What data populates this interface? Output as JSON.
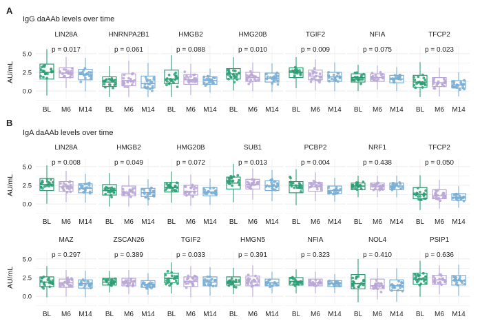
{
  "panels": [
    {
      "letter": "A",
      "title": "IgG daAAb levels over time",
      "ylabel": "AU/mL",
      "rows": [
        [
          {
            "name": "LIN28A",
            "p": "p = 0.017",
            "stats": [
              [
                1.6,
                2.5,
                3.6
              ],
              [
                1.8,
                2.4,
                3.1
              ],
              [
                1.5,
                2.2,
                2.9
              ]
            ]
          },
          {
            "name": "HNRNPA2B1",
            "p": "p = 0.061",
            "stats": [
              [
                0.6,
                1.2,
                1.9
              ],
              [
                0.7,
                1.4,
                2.3
              ],
              [
                0.4,
                1.0,
                2.0
              ]
            ]
          },
          {
            "name": "HMGB2",
            "p": "p = 0.088",
            "stats": [
              [
                1.0,
                1.6,
                2.8
              ],
              [
                0.9,
                1.5,
                2.2
              ],
              [
                0.9,
                1.4,
                1.9
              ]
            ]
          },
          {
            "name": "HMG20B",
            "p": "p = 0.010",
            "stats": [
              [
                1.6,
                2.3,
                3.0
              ],
              [
                1.3,
                1.8,
                2.5
              ],
              [
                1.2,
                1.7,
                2.4
              ]
            ]
          },
          {
            "name": "TGIF2",
            "p": "p = 0.009",
            "stats": [
              [
                1.8,
                2.5,
                3.1
              ],
              [
                1.5,
                2.0,
                2.8
              ],
              [
                1.3,
                1.9,
                2.5
              ]
            ]
          },
          {
            "name": "NFIA",
            "p": "p = 0.075",
            "stats": [
              [
                1.2,
                1.8,
                2.3
              ],
              [
                1.3,
                1.8,
                2.3
              ],
              [
                1.1,
                1.6,
                2.1
              ]
            ]
          },
          {
            "name": "TFCP2",
            "p": "p = 0.023",
            "stats": [
              [
                0.5,
                1.2,
                2.1
              ],
              [
                0.6,
                1.1,
                1.8
              ],
              [
                0.4,
                0.8,
                1.4
              ]
            ]
          }
        ]
      ]
    },
    {
      "letter": "B",
      "title": "IgA daAAb levels over time",
      "ylabel": "AU/mL",
      "rows": [
        [
          {
            "name": "LIN28A",
            "p": "p = 0.008",
            "stats": [
              [
                1.8,
                2.6,
                3.4
              ],
              [
                1.7,
                2.3,
                3.0
              ],
              [
                1.5,
                2.1,
                2.7
              ]
            ]
          },
          {
            "name": "HMGB2",
            "p": "p = 0.049",
            "stats": [
              [
                1.2,
                1.8,
                2.6
              ],
              [
                1.1,
                1.6,
                2.4
              ],
              [
                1.0,
                1.5,
                2.1
              ]
            ]
          },
          {
            "name": "HMG20B",
            "p": "p = 0.072",
            "stats": [
              [
                1.6,
                2.2,
                2.9
              ],
              [
                1.2,
                1.7,
                2.5
              ],
              [
                1.1,
                1.6,
                2.2
              ]
            ]
          },
          {
            "name": "SUB1",
            "p": "p = 0.013",
            "stats": [
              [
                2.0,
                2.8,
                3.6
              ],
              [
                2.0,
                2.6,
                3.3
              ],
              [
                1.8,
                2.4,
                3.1
              ]
            ]
          },
          {
            "name": "PCBP2",
            "p": "p = 0.004",
            "stats": [
              [
                1.5,
                2.5,
                3.0
              ],
              [
                1.7,
                2.3,
                2.9
              ],
              [
                1.4,
                1.8,
                2.4
              ]
            ]
          },
          {
            "name": "NRF1",
            "p": "p = 0.438",
            "stats": [
              [
                1.9,
                2.4,
                2.8
              ],
              [
                1.9,
                2.3,
                2.8
              ],
              [
                1.9,
                2.4,
                2.8
              ]
            ]
          },
          {
            "name": "TFCP2",
            "p": "p = 0.050",
            "stats": [
              [
                0.7,
                1.3,
                2.2
              ],
              [
                0.7,
                1.1,
                1.9
              ],
              [
                0.5,
                0.9,
                1.4
              ]
            ]
          }
        ],
        [
          {
            "name": "MAZ",
            "p": "p = 0.297",
            "stats": [
              [
                1.3,
                1.9,
                2.6
              ],
              [
                1.2,
                1.8,
                2.3
              ],
              [
                1.1,
                1.7,
                2.2
              ]
            ]
          },
          {
            "name": "ZSCAN26",
            "p": "p = 0.389",
            "stats": [
              [
                1.5,
                1.9,
                2.4
              ],
              [
                1.4,
                1.9,
                2.4
              ],
              [
                1.2,
                1.6,
                2.1
              ]
            ]
          },
          {
            "name": "TGIF2",
            "p": "p = 0.033",
            "stats": [
              [
                1.8,
                2.4,
                3.1
              ],
              [
                1.3,
                2.0,
                2.6
              ],
              [
                1.4,
                1.9,
                2.6
              ]
            ]
          },
          {
            "name": "HMGN5",
            "p": "p = 0.391",
            "stats": [
              [
                1.5,
                1.9,
                2.6
              ],
              [
                1.4,
                1.9,
                2.7
              ],
              [
                1.4,
                1.8,
                2.3
              ]
            ]
          },
          {
            "name": "NFIA",
            "p": "p = 0.323",
            "stats": [
              [
                1.5,
                2.0,
                2.5
              ],
              [
                1.4,
                1.8,
                2.3
              ],
              [
                1.3,
                1.7,
                2.1
              ]
            ]
          },
          {
            "name": "NOL4",
            "p": "p = 0.410",
            "stats": [
              [
                1.0,
                1.7,
                2.9
              ],
              [
                1.0,
                1.4,
                2.3
              ],
              [
                0.8,
                1.4,
                2.2
              ]
            ]
          },
          {
            "name": "PSIP1",
            "p": "p = 0.636",
            "stats": [
              [
                1.6,
                2.3,
                3.1
              ],
              [
                1.6,
                2.2,
                2.8
              ],
              [
                1.5,
                2.1,
                2.8
              ]
            ]
          }
        ]
      ]
    }
  ],
  "groups": [
    "BL",
    "M6",
    "M14"
  ],
  "y_ticks": [
    "0.0",
    "2.5",
    "5.0"
  ],
  "colors": {
    "BL": "#2a9d74",
    "M6": "#b9a6d6",
    "M14": "#79aed3"
  },
  "chart_data": {
    "type": "box",
    "y_range": [
      -1,
      6
    ],
    "x_categories": [
      "BL",
      "M6",
      "M14"
    ],
    "note_stats_order": "q1, median, q3 per group"
  }
}
